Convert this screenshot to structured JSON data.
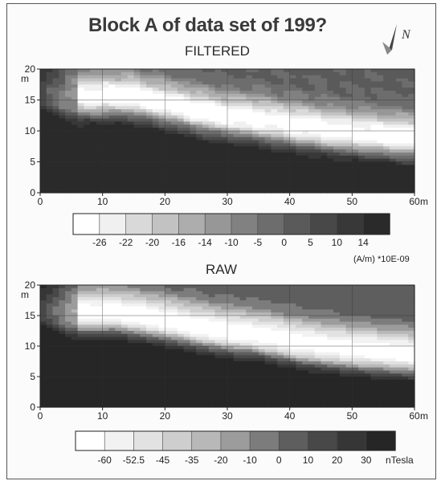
{
  "title": "Block A of data set of 199?",
  "chart_data": [
    {
      "type": "heatmap",
      "title": "FILTERED",
      "xlabel": "m",
      "ylabel": "m",
      "xlim": [
        0,
        60
      ],
      "ylim": [
        0,
        20
      ],
      "x_ticks": [
        "0",
        "10",
        "20",
        "30",
        "40",
        "50",
        "60"
      ],
      "y_ticks": [
        "0",
        "5",
        "10",
        "15",
        "20"
      ],
      "legend_unit": "(A/m) *10E-09",
      "legend_levels": [
        "-26",
        "-22",
        "-20",
        "-16",
        "-14",
        "-10",
        "-5",
        "0",
        "5",
        "10",
        "14"
      ],
      "legend_colors": [
        "#ffffff",
        "#f0f0f0",
        "#d9d9d9",
        "#c2c2c2",
        "#adadad",
        "#979797",
        "#818181",
        "#6d6d6d",
        "#5a5a5a",
        "#484848",
        "#383838",
        "#2a2a2a"
      ],
      "ridge": {
        "x": [
          8,
          14,
          20,
          28,
          36,
          42,
          50,
          60
        ],
        "y": [
          15.5,
          15.6,
          14.4,
          12.6,
          11.6,
          10.6,
          9.6,
          8.8
        ],
        "min_value": -26
      },
      "secondary_min": {
        "x": 43,
        "y": 11,
        "value": -26
      }
    },
    {
      "type": "heatmap",
      "title": "RAW",
      "xlabel": "m",
      "ylabel": "m",
      "xlim": [
        0,
        60
      ],
      "ylim": [
        0,
        20
      ],
      "x_ticks": [
        "0",
        "10",
        "20",
        "30",
        "40",
        "50",
        "60"
      ],
      "y_ticks": [
        "0",
        "5",
        "10",
        "15",
        "20"
      ],
      "legend_unit": "nTesla",
      "legend_levels": [
        "-60",
        "-52.5",
        "-45",
        "-35",
        "-20",
        "-10",
        "0",
        "10",
        "20",
        "30"
      ],
      "legend_colors": [
        "#ffffff",
        "#f2f2f2",
        "#e2e2e2",
        "#cecece",
        "#b8b8b8",
        "#9c9c9c",
        "#7c7c7c",
        "#5e5e5e",
        "#484848",
        "#363636",
        "#262626"
      ],
      "ridge": {
        "x": [
          8,
          12,
          20,
          28,
          35,
          42,
          50,
          60
        ],
        "y": [
          15.5,
          15.5,
          14.2,
          12.6,
          11.8,
          10.4,
          9.4,
          8.6
        ],
        "min_value": -60
      },
      "secondary_min": {
        "x": 38,
        "y": 11.5,
        "value": -52.5
      }
    }
  ],
  "north_arrow": {
    "label": "N",
    "icon": "north-arrow-icon"
  }
}
